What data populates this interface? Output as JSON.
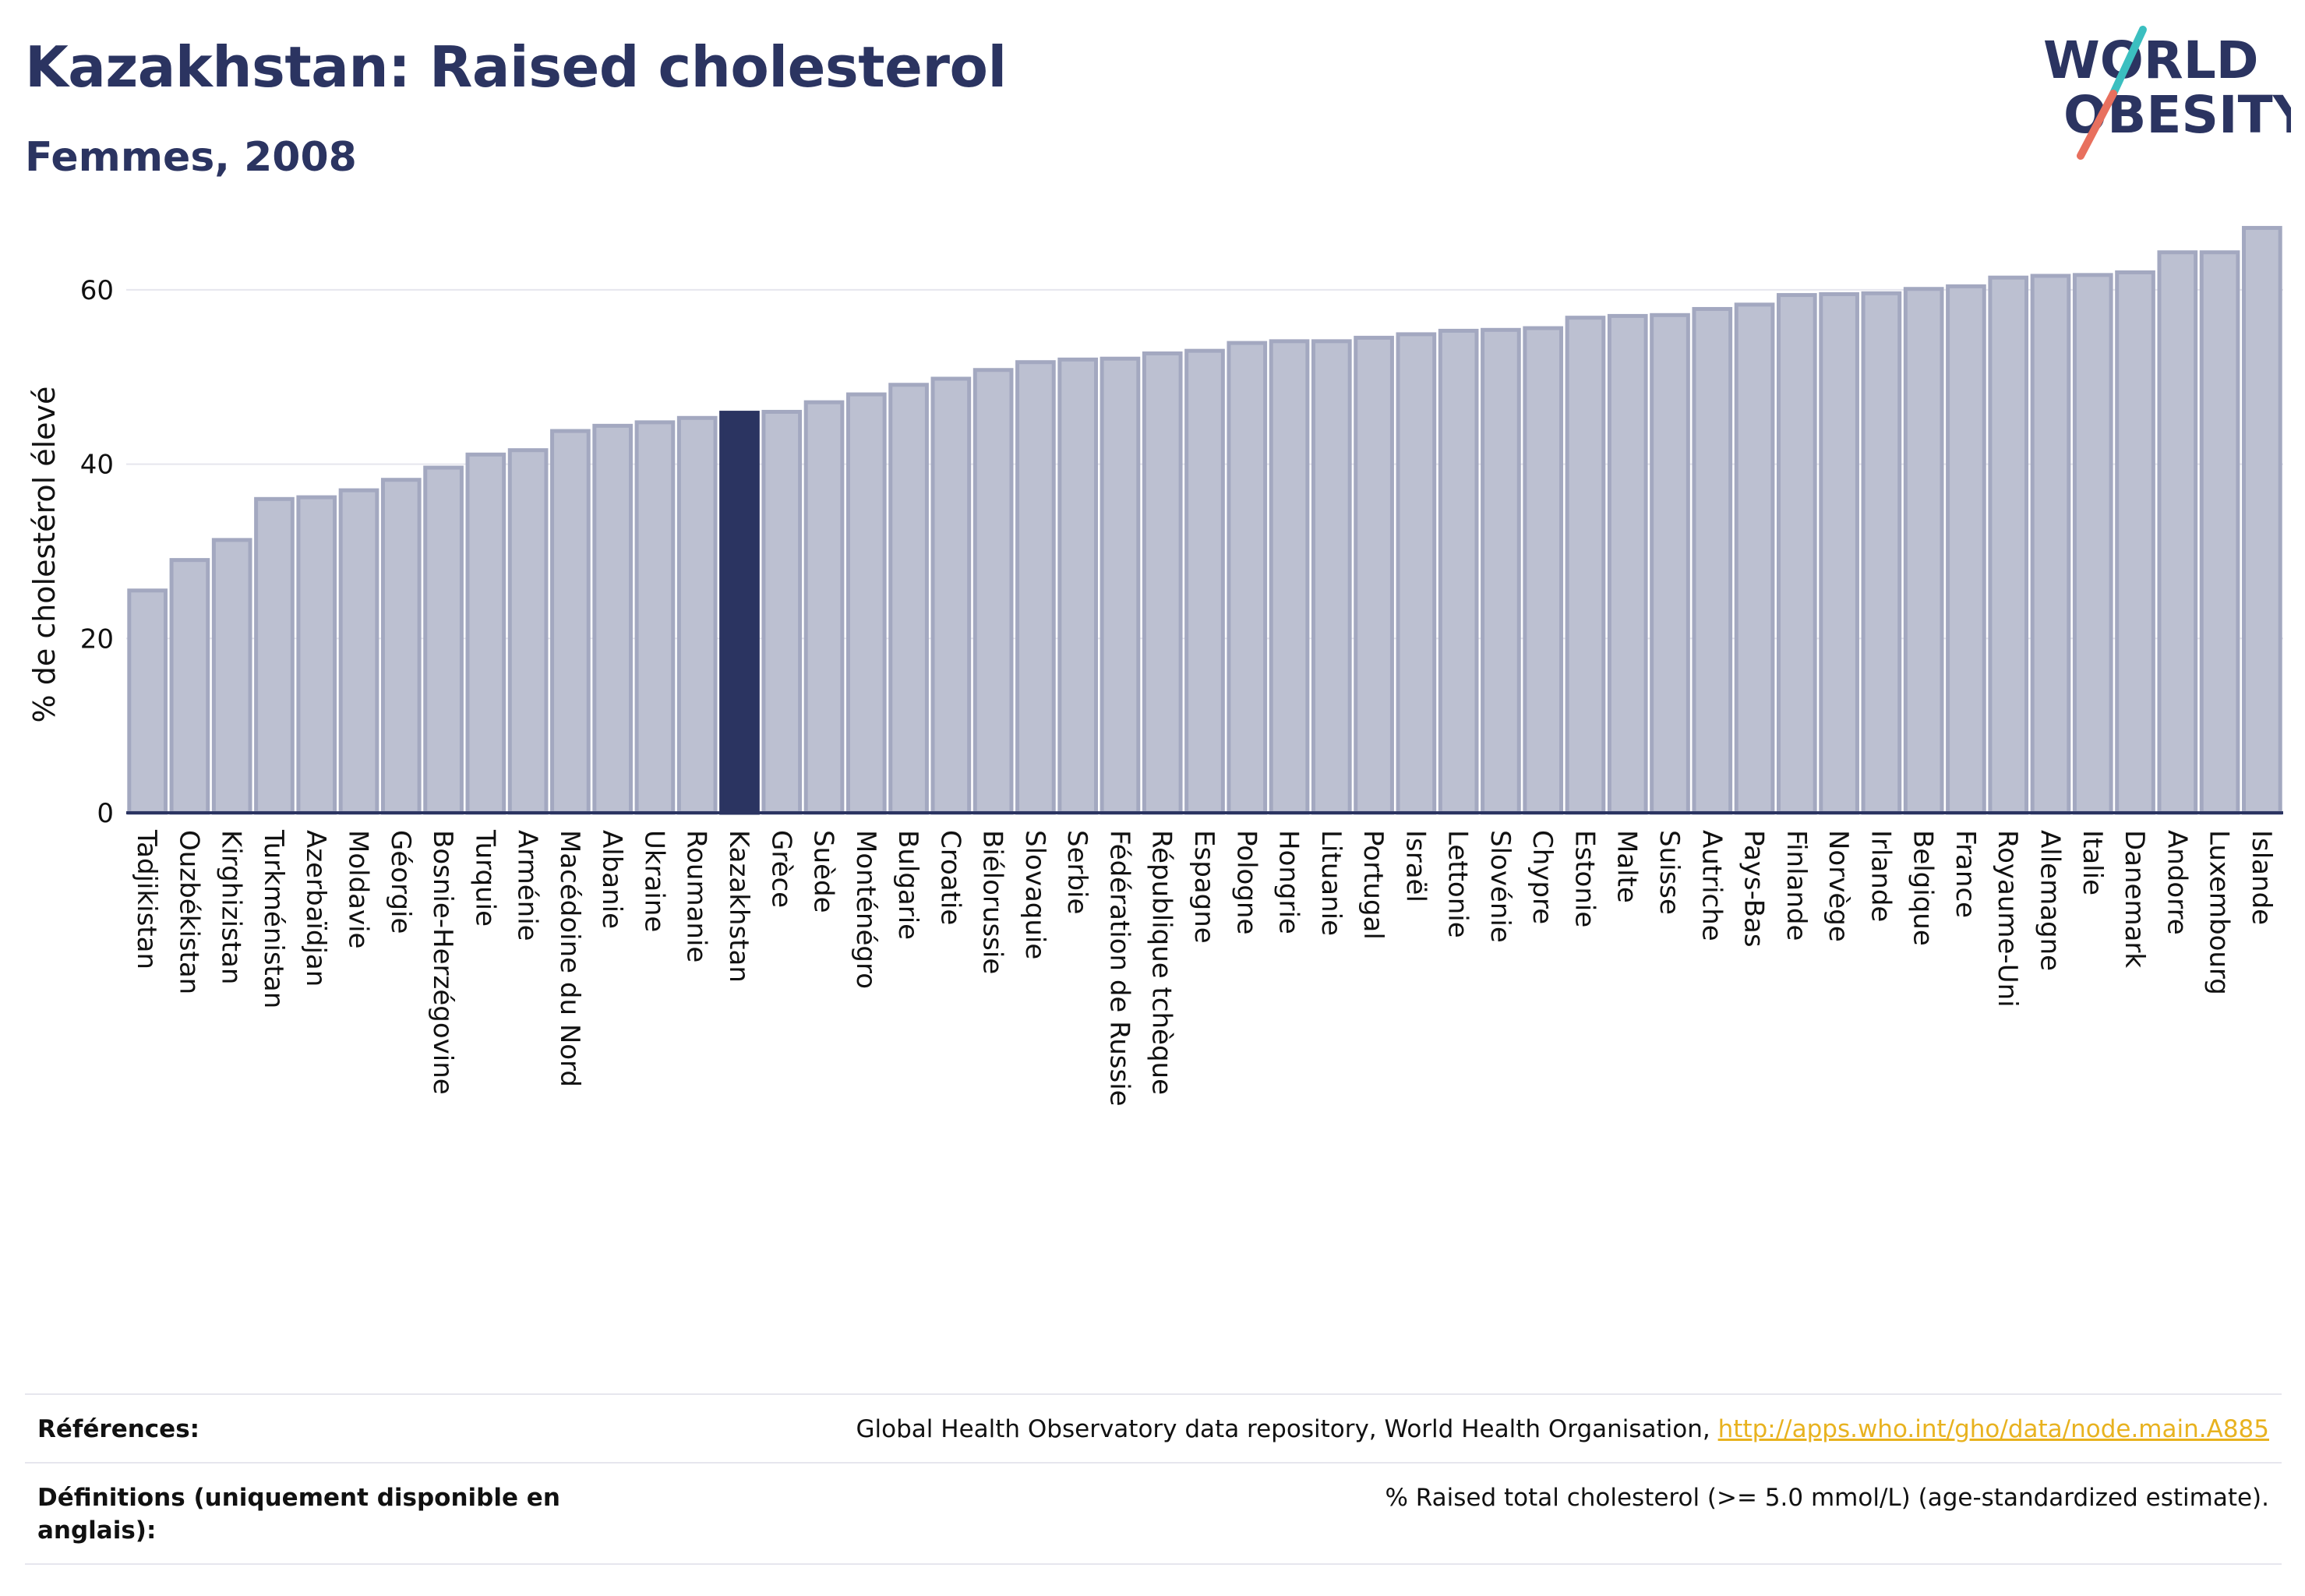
{
  "header": {
    "title": "Kazakhstan: Raised cholesterol",
    "subtitle": "Femmes, 2008"
  },
  "logo": {
    "line1": "WORLD",
    "line2": "OBESITY",
    "colors": {
      "text": "#2b3461",
      "slash_top": "#3bbfc0",
      "slash_bottom": "#e8705e"
    }
  },
  "colors": {
    "bar": "#bcc0d1",
    "bar_edge": "#a3a8c0",
    "highlight": "#2b3461",
    "grid": "#e6e6ee",
    "axis": "#2b3461"
  },
  "chart_data": {
    "type": "bar",
    "ylabel": "% de cholestérol élevé",
    "ylim": [
      0,
      70
    ],
    "yticks": [
      0,
      20,
      40,
      60
    ],
    "grid": true,
    "highlight": "Kazakhstan",
    "categories": [
      "Tadjikistan",
      "Ouzbékistan",
      "Kirghizistan",
      "Turkménistan",
      "Azerbaïdjan",
      "Moldavie",
      "Géorgie",
      "Bosnie-Herzégovine",
      "Turquie",
      "Arménie",
      "Macédoine du Nord",
      "Albanie",
      "Ukraine",
      "Roumanie",
      "Kazakhstan",
      "Grèce",
      "Suède",
      "Monténégro",
      "Bulgarie",
      "Croatie",
      "Biélorussie",
      "Slovaquie",
      "Serbie",
      "Fédération de Russie",
      "République tchèque",
      "Espagne",
      "Pologne",
      "Hongrie",
      "Lituanie",
      "Portugal",
      "Israël",
      "Lettonie",
      "Slovénie",
      "Chypre",
      "Estonie",
      "Malte",
      "Suisse",
      "Autriche",
      "Pays-Bas",
      "Finlande",
      "Norvège",
      "Irlande",
      "Belgique",
      "France",
      "Royaume-Uni",
      "Allemagne",
      "Italie",
      "Danemark",
      "Andorre",
      "Luxembourg",
      "Islande"
    ],
    "values": [
      25.5,
      29.0,
      31.3,
      36.0,
      36.2,
      37.0,
      38.2,
      39.6,
      41.1,
      41.6,
      43.8,
      44.4,
      44.8,
      45.3,
      45.9,
      46.0,
      47.1,
      48.0,
      49.1,
      49.8,
      50.8,
      51.7,
      52.0,
      52.1,
      52.7,
      53.0,
      53.9,
      54.1,
      54.1,
      54.5,
      54.9,
      55.3,
      55.4,
      55.6,
      56.8,
      57.0,
      57.1,
      57.8,
      58.3,
      59.4,
      59.5,
      59.6,
      60.1,
      60.4,
      61.4,
      61.6,
      61.7,
      62.0,
      64.3,
      64.3,
      67.1
    ]
  },
  "references": {
    "label": "Références:",
    "text": "Global Health Observatory data repository, World Health Organisation, ",
    "link": "http://apps.who.int/gho/data/node.main.A885"
  },
  "definitions": {
    "label": "Définitions (uniquement disponible en anglais):",
    "text": "% Raised total cholesterol (>= 5.0 mmol/L) (age-standardized estimate)."
  }
}
